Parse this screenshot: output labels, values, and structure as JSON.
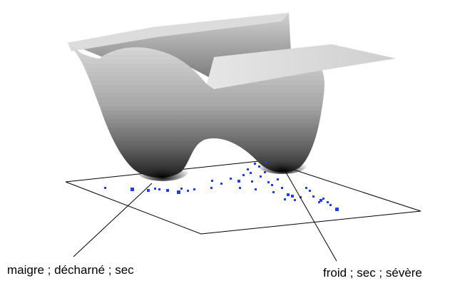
{
  "annotations": {
    "left": "maigre ; décharné ; sec",
    "right": "froid ; sec ; sévère"
  },
  "colors": {
    "background": "#ffffff",
    "points": "#1f3fe0",
    "plane_outline": "#000000",
    "surface_light": "#d9d9d9",
    "surface_dark": "#2a2a2a"
  }
}
